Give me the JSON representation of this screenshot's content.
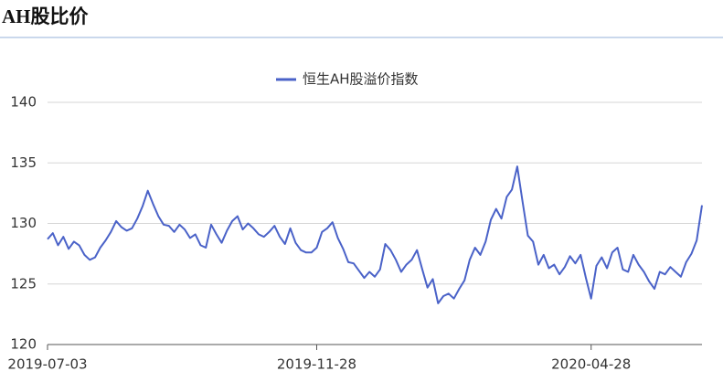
{
  "page_title": "AH股比价",
  "chart_data": {
    "type": "line",
    "categories": [
      "2019-07-03",
      null,
      null,
      null,
      null,
      null,
      null,
      null,
      null,
      null,
      null,
      null,
      null,
      null,
      null,
      null,
      null,
      null,
      null,
      null,
      null,
      null,
      null,
      null,
      null,
      null,
      null,
      null,
      null,
      null,
      null,
      null,
      null,
      null,
      null,
      null,
      null,
      null,
      null,
      null,
      null,
      null,
      null,
      null,
      null,
      null,
      null,
      null,
      null,
      null,
      null,
      "2019-11-28",
      null,
      null,
      null,
      null,
      null,
      null,
      null,
      null,
      null,
      null,
      null,
      null,
      null,
      null,
      null,
      null,
      null,
      null,
      null,
      null,
      null,
      null,
      null,
      null,
      null,
      null,
      null,
      null,
      null,
      null,
      null,
      null,
      null,
      null,
      null,
      null,
      null,
      null,
      null,
      null,
      null,
      null,
      null,
      null,
      null,
      null,
      null,
      null,
      null,
      null,
      null,
      "2020-04-28",
      null,
      null,
      null,
      null,
      null,
      null,
      null,
      null,
      null,
      null,
      null,
      null,
      null,
      null,
      null,
      null,
      null,
      null,
      null,
      null,
      null
    ],
    "series": [
      {
        "name": "恒生AH股溢价指数",
        "color": "#4a62c8",
        "values": [
          128.7,
          129.2,
          128.2,
          128.9,
          127.9,
          128.5,
          128.2,
          127.4,
          127.0,
          127.2,
          128.0,
          128.6,
          129.3,
          130.2,
          129.7,
          129.4,
          129.6,
          130.4,
          131.4,
          132.7,
          131.6,
          130.6,
          129.9,
          129.8,
          129.3,
          129.9,
          129.5,
          128.8,
          129.1,
          128.2,
          128.0,
          129.9,
          129.1,
          128.4,
          129.4,
          130.2,
          130.6,
          129.5,
          130.0,
          129.6,
          129.1,
          128.9,
          129.3,
          129.8,
          128.9,
          128.3,
          129.6,
          128.4,
          127.8,
          127.6,
          127.6,
          128.0,
          129.3,
          129.6,
          130.1,
          128.8,
          127.9,
          126.8,
          126.7,
          126.1,
          125.5,
          126.0,
          125.6,
          126.2,
          128.3,
          127.8,
          127.0,
          126.0,
          126.6,
          127.0,
          127.8,
          126.2,
          124.7,
          125.4,
          123.4,
          124.0,
          124.2,
          123.8,
          124.6,
          125.3,
          127.0,
          128.0,
          127.4,
          128.5,
          130.3,
          131.2,
          130.4,
          132.2,
          132.8,
          134.7,
          131.8,
          129.0,
          128.5,
          126.6,
          127.4,
          126.3,
          126.6,
          125.8,
          126.4,
          127.3,
          126.7,
          127.4,
          125.5,
          123.8,
          126.5,
          127.2,
          126.3,
          127.6,
          128.0,
          126.2,
          126.0,
          127.4,
          126.6,
          126.0,
          125.2,
          124.6,
          126.0,
          125.8,
          126.4,
          126.0,
          125.6,
          126.8,
          127.5,
          128.6,
          131.5
        ]
      }
    ],
    "ylim": [
      120,
      140
    ],
    "yticks": [
      120,
      125,
      130,
      135,
      140
    ],
    "grid": true
  }
}
